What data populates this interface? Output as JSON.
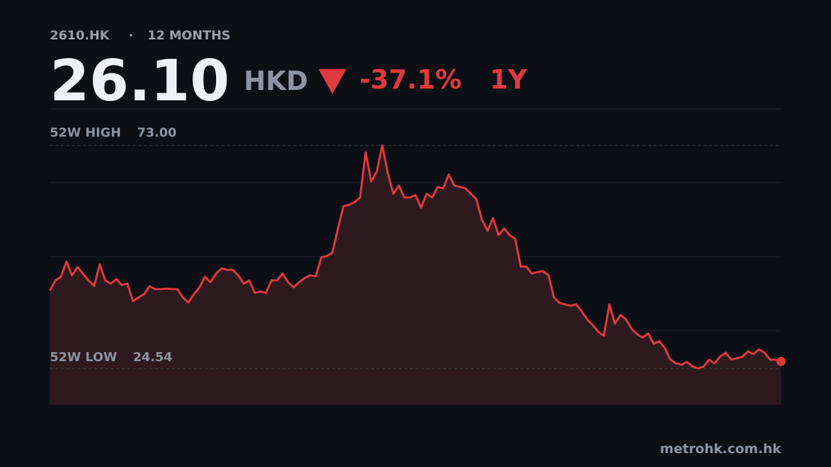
{
  "header": {
    "ticker": "2610.HK",
    "separator": "·",
    "period_label": "12 MONTHS",
    "price": {
      "value": 26.1,
      "label": "26.10"
    },
    "currency": "HKD",
    "change": {
      "value": -37.1,
      "label": "-37.1%"
    },
    "change_period": "1Y"
  },
  "chart_data": {
    "type": "line",
    "color": "#e0393e",
    "fill": "#2e191e",
    "ylim": [
      16.7,
      81.0
    ],
    "values": [
      41.5,
      43.7,
      44.5,
      47.8,
      44.8,
      46.6,
      45.1,
      43.7,
      42.5,
      47.2,
      43.7,
      43.0,
      44.0,
      42.7,
      43.0,
      39.2,
      40.0,
      40.7,
      42.4,
      41.8,
      41.8,
      41.9,
      41.8,
      41.8,
      40.0,
      38.9,
      40.7,
      42.2,
      44.5,
      43.3,
      45.2,
      46.3,
      46.0,
      46.0,
      44.8,
      43.0,
      43.7,
      41.0,
      41.3,
      41.0,
      43.7,
      43.7,
      45.2,
      43.3,
      42.2,
      43.3,
      44.2,
      44.8,
      44.6,
      48.7,
      49.0,
      49.7,
      55.0,
      59.8,
      60.1,
      60.7,
      61.7,
      71.5,
      65.2,
      67.3,
      73.0,
      67.0,
      62.5,
      64.3,
      61.7,
      61.7,
      62.2,
      59.5,
      62.5,
      61.7,
      64.0,
      63.7,
      66.7,
      64.3,
      64.0,
      63.7,
      62.5,
      61.3,
      56.8,
      54.5,
      57.2,
      53.5,
      55.0,
      53.5,
      52.7,
      46.7,
      46.7,
      45.2,
      45.5,
      45.7,
      44.8,
      40.0,
      38.8,
      38.5,
      38.2,
      38.5,
      37.0,
      35.2,
      34.0,
      32.5,
      31.7,
      38.5,
      34.3,
      36.2,
      35.2,
      33.2,
      32.0,
      31.3,
      32.2,
      29.9,
      30.5,
      29.0,
      26.5,
      25.7,
      25.4,
      26.0,
      25.0,
      24.6,
      25.0,
      26.5,
      25.7,
      27.2,
      28.0,
      26.5,
      26.8,
      27.1,
      28.3,
      27.7,
      28.7,
      28.0,
      26.5,
      26.5,
      26.1
    ],
    "high": {
      "label": "52W HIGH",
      "value": 73,
      "value_label": "73.00"
    },
    "low": {
      "label": "52W LOW",
      "value": 24.54
    }
  },
  "footer": {
    "source": "metrohk.com.hk"
  }
}
